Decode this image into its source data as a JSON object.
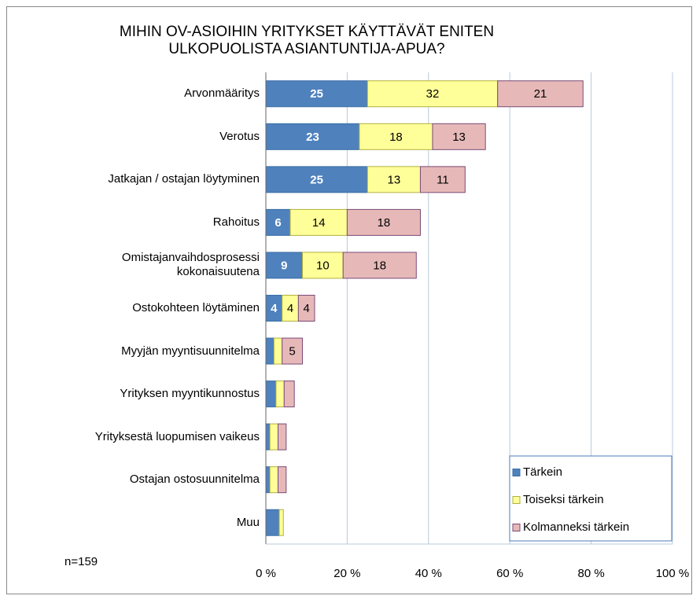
{
  "chart_data": {
    "type": "stacked_bar_horizontal",
    "title": "MIHIN OV-ASIOIHIN YRITYKSET KÄYTTÄVÄT ENITEN\nULKOPUOLISTA ASIANTUNTIJA-APUA?",
    "annotation": "n=159",
    "categories": [
      "Arvonmääritys",
      "Verotus",
      "Jatkajan / ostajan löytyminen",
      "Rahoitus",
      "Omistajanvaihdosprosessi\nkokonaisuutena",
      "Ostokohteen löytäminen",
      "Myyjän  myyntisuunnitelma",
      "Yrityksen myyntikunnostus",
      "Yrityksestä luopumisen vaikeus",
      "Ostajan ostosuunnitelma",
      "Muu"
    ],
    "series": [
      {
        "name": "Tärkein",
        "color": "#4f81bd",
        "values": [
          25,
          23,
          25,
          6,
          9,
          4,
          2,
          2.5,
          1,
          1,
          3.3
        ]
      },
      {
        "name": "Toiseksi tärkein",
        "color": "#ffff99",
        "values": [
          32,
          18,
          13,
          14,
          10,
          4,
          2,
          2,
          2,
          2,
          1
        ]
      },
      {
        "name": "Kolmanneksi tärkein",
        "color": "#e6b9b8",
        "values": [
          21,
          13,
          11,
          18,
          18,
          4,
          5,
          2.5,
          2,
          2,
          0
        ]
      }
    ],
    "xlim": [
      0,
      100
    ],
    "xticks": [
      {
        "value": 0,
        "label": "0 %"
      },
      {
        "value": 20,
        "label": "20 %"
      },
      {
        "value": 40,
        "label": "40 %"
      },
      {
        "value": 60,
        "label": "60 %"
      },
      {
        "value": 80,
        "label": "80 %"
      },
      {
        "value": 100,
        "label": "100 %"
      }
    ],
    "grid": true,
    "legend": "lower right"
  }
}
